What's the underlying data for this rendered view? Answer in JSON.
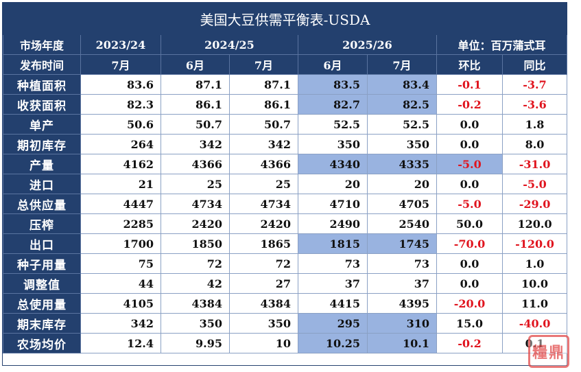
{
  "title": "美国大豆供需平衡表-USDA",
  "header": {
    "row1_label": "市场年度",
    "year_2023": "2023/24",
    "year_2024": "2024/25",
    "year_2025": "2025/26",
    "unit": "单位：百万蒲式耳",
    "row2_label": "发布时间",
    "months": [
      "7月",
      "6月",
      "7月",
      "6月",
      "7月"
    ],
    "mom": "环比",
    "yoy": "同比"
  },
  "rows": [
    {
      "label": "种植面积",
      "values": [
        "83.6",
        "87.1",
        "87.1",
        "83.5",
        "83.4",
        "-0.1",
        "-3.7"
      ]
    },
    {
      "label": "收获面积",
      "values": [
        "82.3",
        "86.1",
        "86.1",
        "82.7",
        "82.5",
        "-0.2",
        "-3.6"
      ]
    },
    {
      "label": "单产",
      "values": [
        "50.6",
        "50.7",
        "50.7",
        "52.5",
        "52.5",
        "0.0",
        "1.8"
      ]
    },
    {
      "label": "期初库存",
      "values": [
        "264",
        "342",
        "342",
        "350",
        "350",
        "0.0",
        "8.0"
      ]
    },
    {
      "label": "产量",
      "values": [
        "4162",
        "4366",
        "4366",
        "4340",
        "4335",
        "-5.0",
        "-31.0"
      ]
    },
    {
      "label": "进口",
      "values": [
        "21",
        "25",
        "25",
        "20",
        "20",
        "0.0",
        "-5.0"
      ]
    },
    {
      "label": "总供应量",
      "values": [
        "4447",
        "4734",
        "4734",
        "4710",
        "4705",
        "-5.0",
        "-29.0"
      ]
    },
    {
      "label": "压榨",
      "values": [
        "2285",
        "2420",
        "2420",
        "2490",
        "2540",
        "50.0",
        "120.0"
      ]
    },
    {
      "label": "出口",
      "values": [
        "1700",
        "1850",
        "1865",
        "1815",
        "1745",
        "-70.0",
        "-120.0"
      ]
    },
    {
      "label": "种子用量",
      "values": [
        "75",
        "72",
        "72",
        "73",
        "73",
        "0.0",
        "1.0"
      ]
    },
    {
      "label": "调整值",
      "values": [
        "44",
        "42",
        "27",
        "37",
        "37",
        "0.0",
        "10.0"
      ]
    },
    {
      "label": "总使用量",
      "values": [
        "4105",
        "4384",
        "4384",
        "4415",
        "4395",
        "-20.0",
        "11.0"
      ]
    },
    {
      "label": "期末库存",
      "values": [
        "342",
        "350",
        "350",
        "295",
        "310",
        "15.0",
        "-40.0"
      ]
    },
    {
      "label": "农场均价",
      "values": [
        "12.4",
        "9.95",
        "10",
        "10.25",
        "10.1",
        "-0.2",
        "0.1"
      ]
    }
  ],
  "highlighted_rows": [
    "种植面积",
    "收获面积",
    "产量",
    "出口",
    "期末库存",
    "农场均价"
  ],
  "highlighted_mom_rows": [
    "产量"
  ],
  "colors": {
    "header_bg": "#23406e",
    "highlight": "#99b3e0",
    "negative": "#e0141e",
    "stamp": "#e24a4a"
  },
  "watermark": "糧鼎"
}
